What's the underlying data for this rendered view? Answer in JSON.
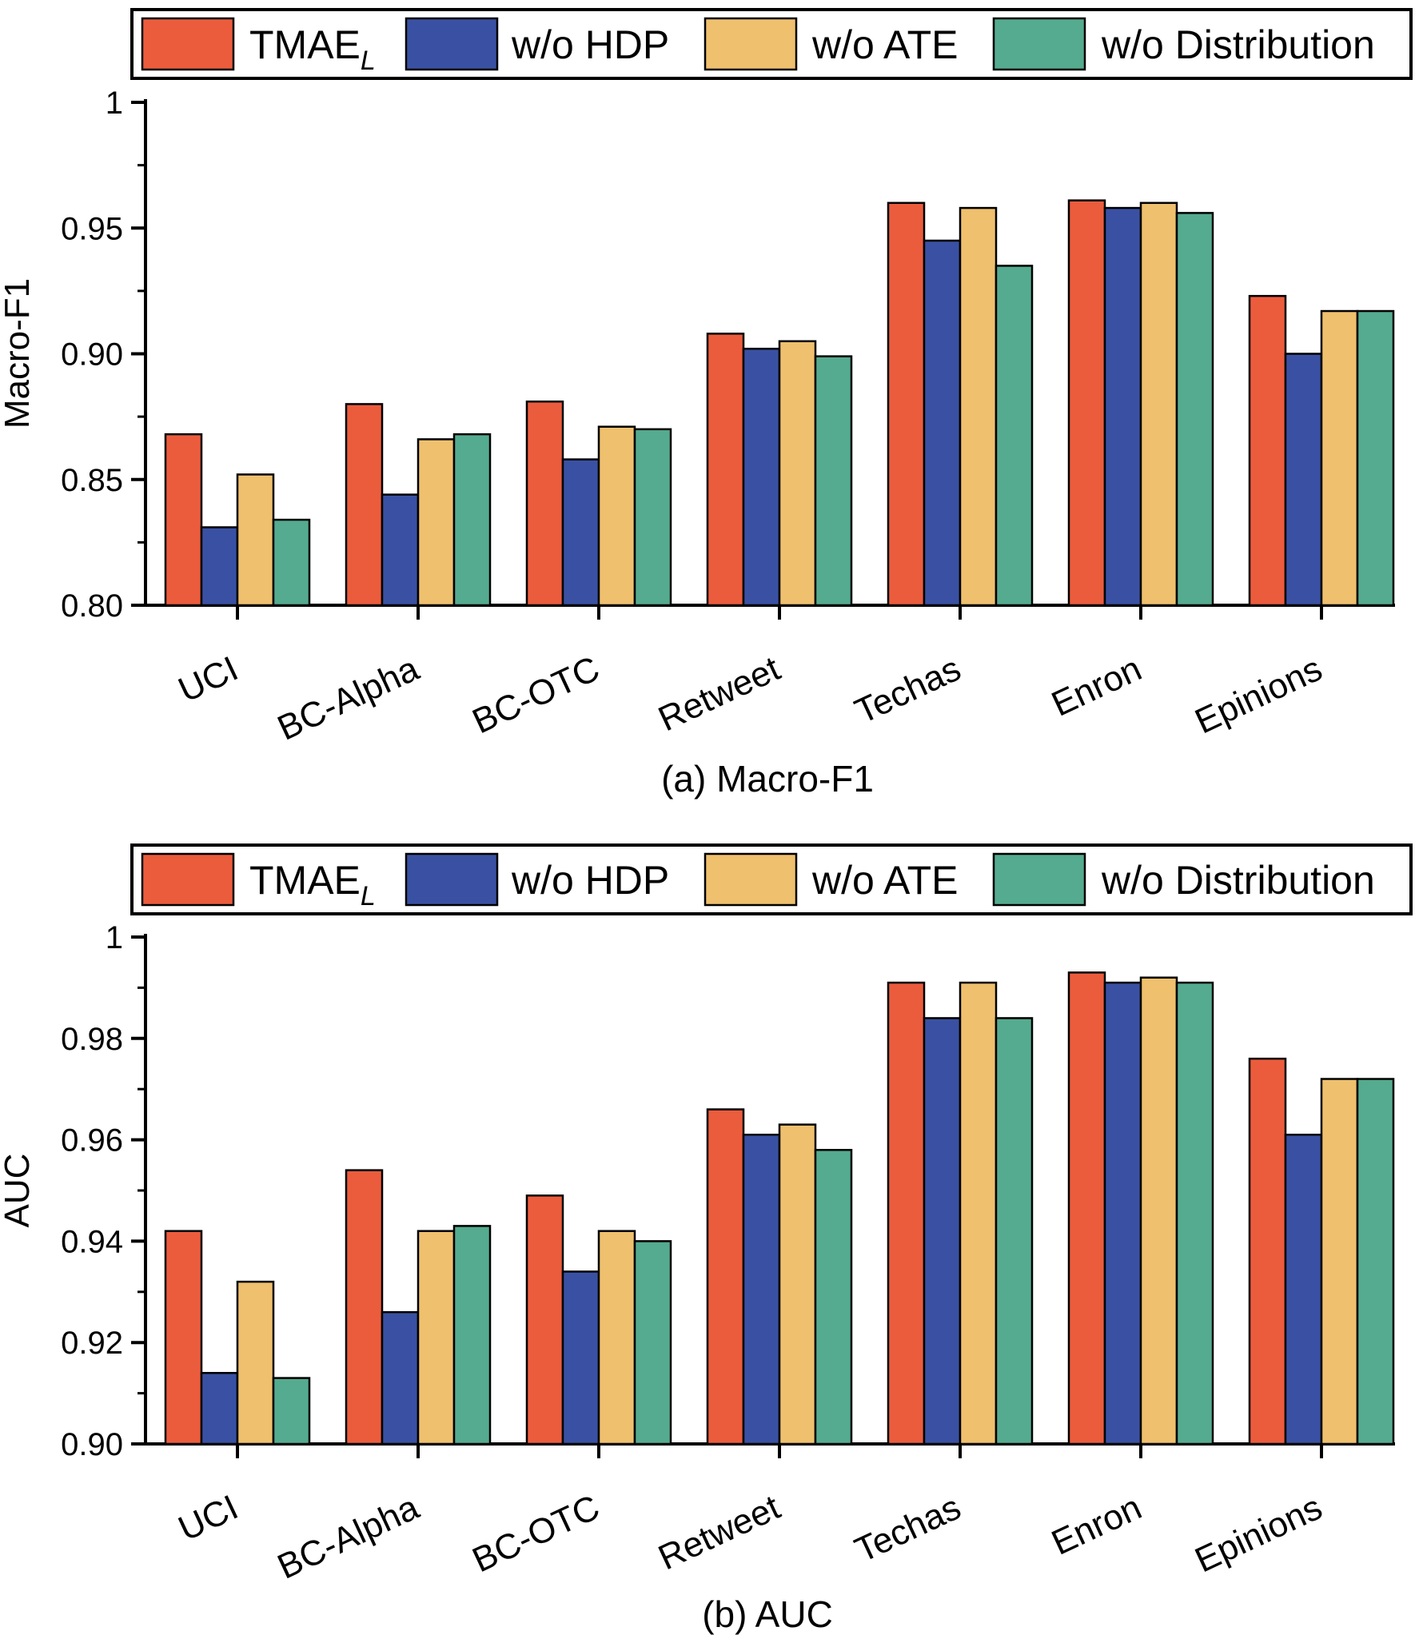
{
  "legend": [
    {
      "label": "TMAE",
      "sub": "L",
      "color": "#EB5C3D"
    },
    {
      "label": "w/o HDP",
      "color": "#3A51A3"
    },
    {
      "label": "w/o ATE",
      "color": "#EFC06E"
    },
    {
      "label": "w/o Distribution",
      "color": "#55AB8F"
    }
  ],
  "chart_data": [
    {
      "type": "bar",
      "caption": "(a)  Macro-F1",
      "ylabel": "Macro-F1",
      "xlabel": "",
      "ylim": [
        0.8,
        1.0
      ],
      "yticks": [
        0.8,
        0.85,
        0.9,
        0.95,
        1.0
      ],
      "ytick_labels": [
        "0.80",
        "0.85",
        "0.90",
        "0.95",
        "1"
      ],
      "grid": false,
      "legend_position": "top",
      "categories": [
        "UCI",
        "BC-Alpha",
        "BC-OTC",
        "Retweet",
        "Techas",
        "Enron",
        "Epinions"
      ],
      "series": [
        {
          "name": "TMAE_L",
          "values": [
            0.868,
            0.88,
            0.881,
            0.908,
            0.96,
            0.961,
            0.923
          ]
        },
        {
          "name": "w/o HDP",
          "values": [
            0.831,
            0.844,
            0.858,
            0.902,
            0.945,
            0.958,
            0.9
          ]
        },
        {
          "name": "w/o ATE",
          "values": [
            0.852,
            0.866,
            0.871,
            0.905,
            0.958,
            0.96,
            0.917
          ]
        },
        {
          "name": "w/o Distribution",
          "values": [
            0.834,
            0.868,
            0.87,
            0.899,
            0.935,
            0.956,
            0.917
          ]
        }
      ]
    },
    {
      "type": "bar",
      "caption": "(b)  AUC",
      "ylabel": "AUC",
      "xlabel": "",
      "ylim": [
        0.9,
        1.0
      ],
      "yticks": [
        0.9,
        0.92,
        0.94,
        0.96,
        0.98,
        1.0
      ],
      "ytick_labels": [
        "0.90",
        "0.92",
        "0.94",
        "0.96",
        "0.98",
        "1"
      ],
      "grid": false,
      "legend_position": "top",
      "categories": [
        "UCI",
        "BC-Alpha",
        "BC-OTC",
        "Retweet",
        "Techas",
        "Enron",
        "Epinions"
      ],
      "series": [
        {
          "name": "TMAE_L",
          "values": [
            0.942,
            0.954,
            0.949,
            0.966,
            0.991,
            0.993,
            0.976
          ]
        },
        {
          "name": "w/o HDP",
          "values": [
            0.914,
            0.926,
            0.934,
            0.961,
            0.984,
            0.991,
            0.961
          ]
        },
        {
          "name": "w/o ATE",
          "values": [
            0.932,
            0.942,
            0.942,
            0.963,
            0.991,
            0.992,
            0.972
          ]
        },
        {
          "name": "w/o Distribution",
          "values": [
            0.913,
            0.943,
            0.94,
            0.958,
            0.984,
            0.991,
            0.972
          ]
        }
      ]
    }
  ]
}
